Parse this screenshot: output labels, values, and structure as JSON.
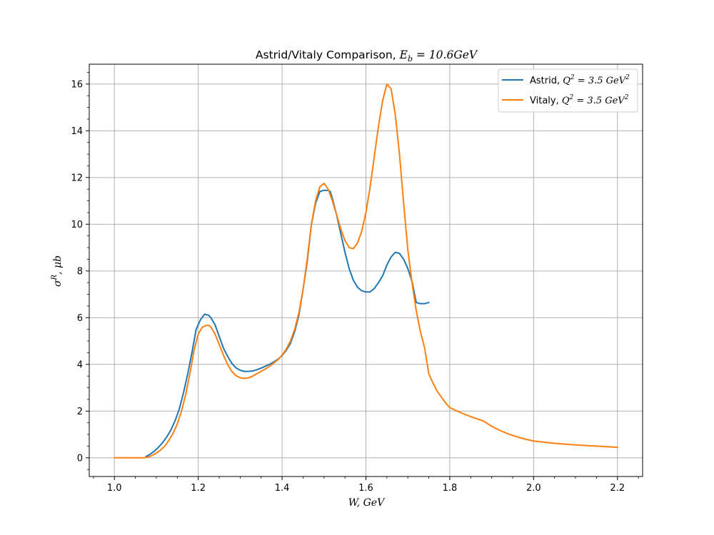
{
  "chart_data": {
    "type": "line",
    "title_prefix": "Astrid/Vitaly Comparison, ",
    "title_math": "E",
    "title_math_sub": "b",
    "title_math_rest": " = 10.6GeV",
    "xlabel": "W, GeV",
    "ylabel_sigma": "σ",
    "ylabel_sup": "R",
    "ylabel_rest": ", μb",
    "xlim": [
      0.94,
      2.26
    ],
    "ylim": [
      -0.8,
      16.85
    ],
    "xticks": [
      1.0,
      1.2,
      1.4,
      1.6,
      1.8,
      2.0,
      2.2
    ],
    "xtick_labels": [
      "1.0",
      "1.2",
      "1.4",
      "1.6",
      "1.8",
      "2.0",
      "2.2"
    ],
    "yticks": [
      0,
      2,
      4,
      6,
      8,
      10,
      12,
      14,
      16
    ],
    "ytick_labels": [
      "0",
      "2",
      "4",
      "6",
      "8",
      "10",
      "12",
      "14",
      "16"
    ],
    "grid": true,
    "legend_position": "top-right",
    "series": [
      {
        "name_prefix": "Astrid, ",
        "name_math": "Q",
        "name_sup": "2",
        "name_rest": " = 3.5 GeV",
        "name_sup2": "2",
        "color": "#1f77b4",
        "x": [
          1.075,
          1.085,
          1.095,
          1.105,
          1.115,
          1.125,
          1.135,
          1.145,
          1.155,
          1.165,
          1.175,
          1.185,
          1.195,
          1.205,
          1.215,
          1.225,
          1.23,
          1.24,
          1.25,
          1.26,
          1.27,
          1.28,
          1.29,
          1.3,
          1.31,
          1.32,
          1.33,
          1.34,
          1.35,
          1.36,
          1.37,
          1.38,
          1.39,
          1.4,
          1.41,
          1.42,
          1.43,
          1.44,
          1.45,
          1.46,
          1.47,
          1.48,
          1.49,
          1.5,
          1.51,
          1.515,
          1.52,
          1.53,
          1.54,
          1.55,
          1.56,
          1.57,
          1.58,
          1.59,
          1.6,
          1.61,
          1.62,
          1.63,
          1.64,
          1.65,
          1.66,
          1.67,
          1.68,
          1.69,
          1.7,
          1.71,
          1.72,
          1.73,
          1.74,
          1.75
        ],
        "y": [
          0.05,
          0.15,
          0.28,
          0.45,
          0.65,
          0.9,
          1.2,
          1.6,
          2.1,
          2.8,
          3.6,
          4.5,
          5.5,
          5.9,
          6.15,
          6.1,
          6.0,
          5.7,
          5.2,
          4.7,
          4.35,
          4.05,
          3.85,
          3.75,
          3.7,
          3.7,
          3.72,
          3.77,
          3.84,
          3.92,
          4.0,
          4.1,
          4.22,
          4.38,
          4.6,
          4.9,
          5.4,
          6.1,
          7.2,
          8.4,
          10.0,
          10.9,
          11.4,
          11.45,
          11.45,
          11.4,
          11.1,
          10.4,
          9.6,
          8.8,
          8.1,
          7.6,
          7.3,
          7.15,
          7.1,
          7.1,
          7.25,
          7.5,
          7.8,
          8.25,
          8.6,
          8.8,
          8.75,
          8.5,
          8.1,
          7.55,
          6.65,
          6.6,
          6.6,
          6.65
        ]
      },
      {
        "name_prefix": "Vitaly, ",
        "name_math": "Q",
        "name_sup": "2",
        "name_rest": " = 3.5 GeV",
        "name_sup2": "2",
        "color": "#ff7f0e",
        "x": [
          1.0,
          1.07,
          1.08,
          1.09,
          1.1,
          1.11,
          1.12,
          1.13,
          1.14,
          1.15,
          1.16,
          1.17,
          1.18,
          1.19,
          1.2,
          1.21,
          1.22,
          1.225,
          1.23,
          1.24,
          1.25,
          1.26,
          1.27,
          1.28,
          1.29,
          1.3,
          1.31,
          1.32,
          1.33,
          1.34,
          1.35,
          1.36,
          1.37,
          1.38,
          1.39,
          1.4,
          1.41,
          1.42,
          1.43,
          1.44,
          1.45,
          1.46,
          1.47,
          1.48,
          1.49,
          1.5,
          1.51,
          1.52,
          1.53,
          1.54,
          1.55,
          1.56,
          1.57,
          1.58,
          1.59,
          1.6,
          1.61,
          1.62,
          1.63,
          1.64,
          1.65,
          1.66,
          1.67,
          1.68,
          1.69,
          1.7,
          1.71,
          1.72,
          1.73,
          1.74,
          1.75,
          1.76,
          1.77,
          1.78,
          1.79,
          1.8,
          1.82,
          1.84,
          1.86,
          1.88,
          1.9,
          1.92,
          1.94,
          1.96,
          1.98,
          2.0,
          2.05,
          2.1,
          2.15,
          2.2
        ],
        "y": [
          0.0,
          0.0,
          0.03,
          0.1,
          0.2,
          0.33,
          0.5,
          0.75,
          1.05,
          1.45,
          2.0,
          2.7,
          3.6,
          4.6,
          5.3,
          5.6,
          5.67,
          5.67,
          5.6,
          5.3,
          4.85,
          4.4,
          4.0,
          3.7,
          3.52,
          3.43,
          3.4,
          3.42,
          3.5,
          3.6,
          3.7,
          3.8,
          3.92,
          4.05,
          4.2,
          4.4,
          4.65,
          5.0,
          5.5,
          6.2,
          7.2,
          8.5,
          10.0,
          11.0,
          11.6,
          11.75,
          11.5,
          11.0,
          10.4,
          9.8,
          9.3,
          9.0,
          8.95,
          9.2,
          9.7,
          10.5,
          11.6,
          12.9,
          14.2,
          15.3,
          16.0,
          15.8,
          14.7,
          13.0,
          10.9,
          8.9,
          7.5,
          6.3,
          5.4,
          4.7,
          3.6,
          3.2,
          2.85,
          2.6,
          2.35,
          2.15,
          1.98,
          1.83,
          1.7,
          1.58,
          1.35,
          1.17,
          1.02,
          0.9,
          0.8,
          0.72,
          0.62,
          0.55,
          0.5,
          0.45
        ]
      }
    ]
  }
}
